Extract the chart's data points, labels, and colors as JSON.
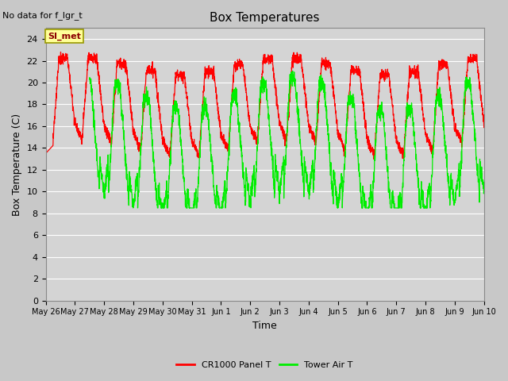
{
  "title": "Box Temperatures",
  "no_data_label": "No data for f_lgr_t",
  "si_met_label": "SI_met",
  "xlabel": "Time",
  "ylabel": "Box Temperature (C)",
  "ylim": [
    0,
    25
  ],
  "yticks": [
    0,
    2,
    4,
    6,
    8,
    10,
    12,
    14,
    16,
    18,
    20,
    22,
    24
  ],
  "x_tick_labels": [
    "May 26",
    "May 27",
    "May 28",
    "May 29",
    "May 30",
    "May 31",
    "Jun 1",
    "Jun 2",
    "Jun 3",
    "Jun 4",
    "Jun 5",
    "Jun 6",
    "Jun 7",
    "Jun 8",
    "Jun 9",
    "Jun 10"
  ],
  "plot_bg_color": "#d4d4d4",
  "fig_bg_color": "#c8c8c8",
  "cr1000_color": "#ff0000",
  "tower_color": "#00ee00",
  "legend_labels": [
    "CR1000 Panel T",
    "Tower Air T"
  ],
  "title_fontsize": 11,
  "axis_label_fontsize": 9,
  "tick_fontsize": 8
}
